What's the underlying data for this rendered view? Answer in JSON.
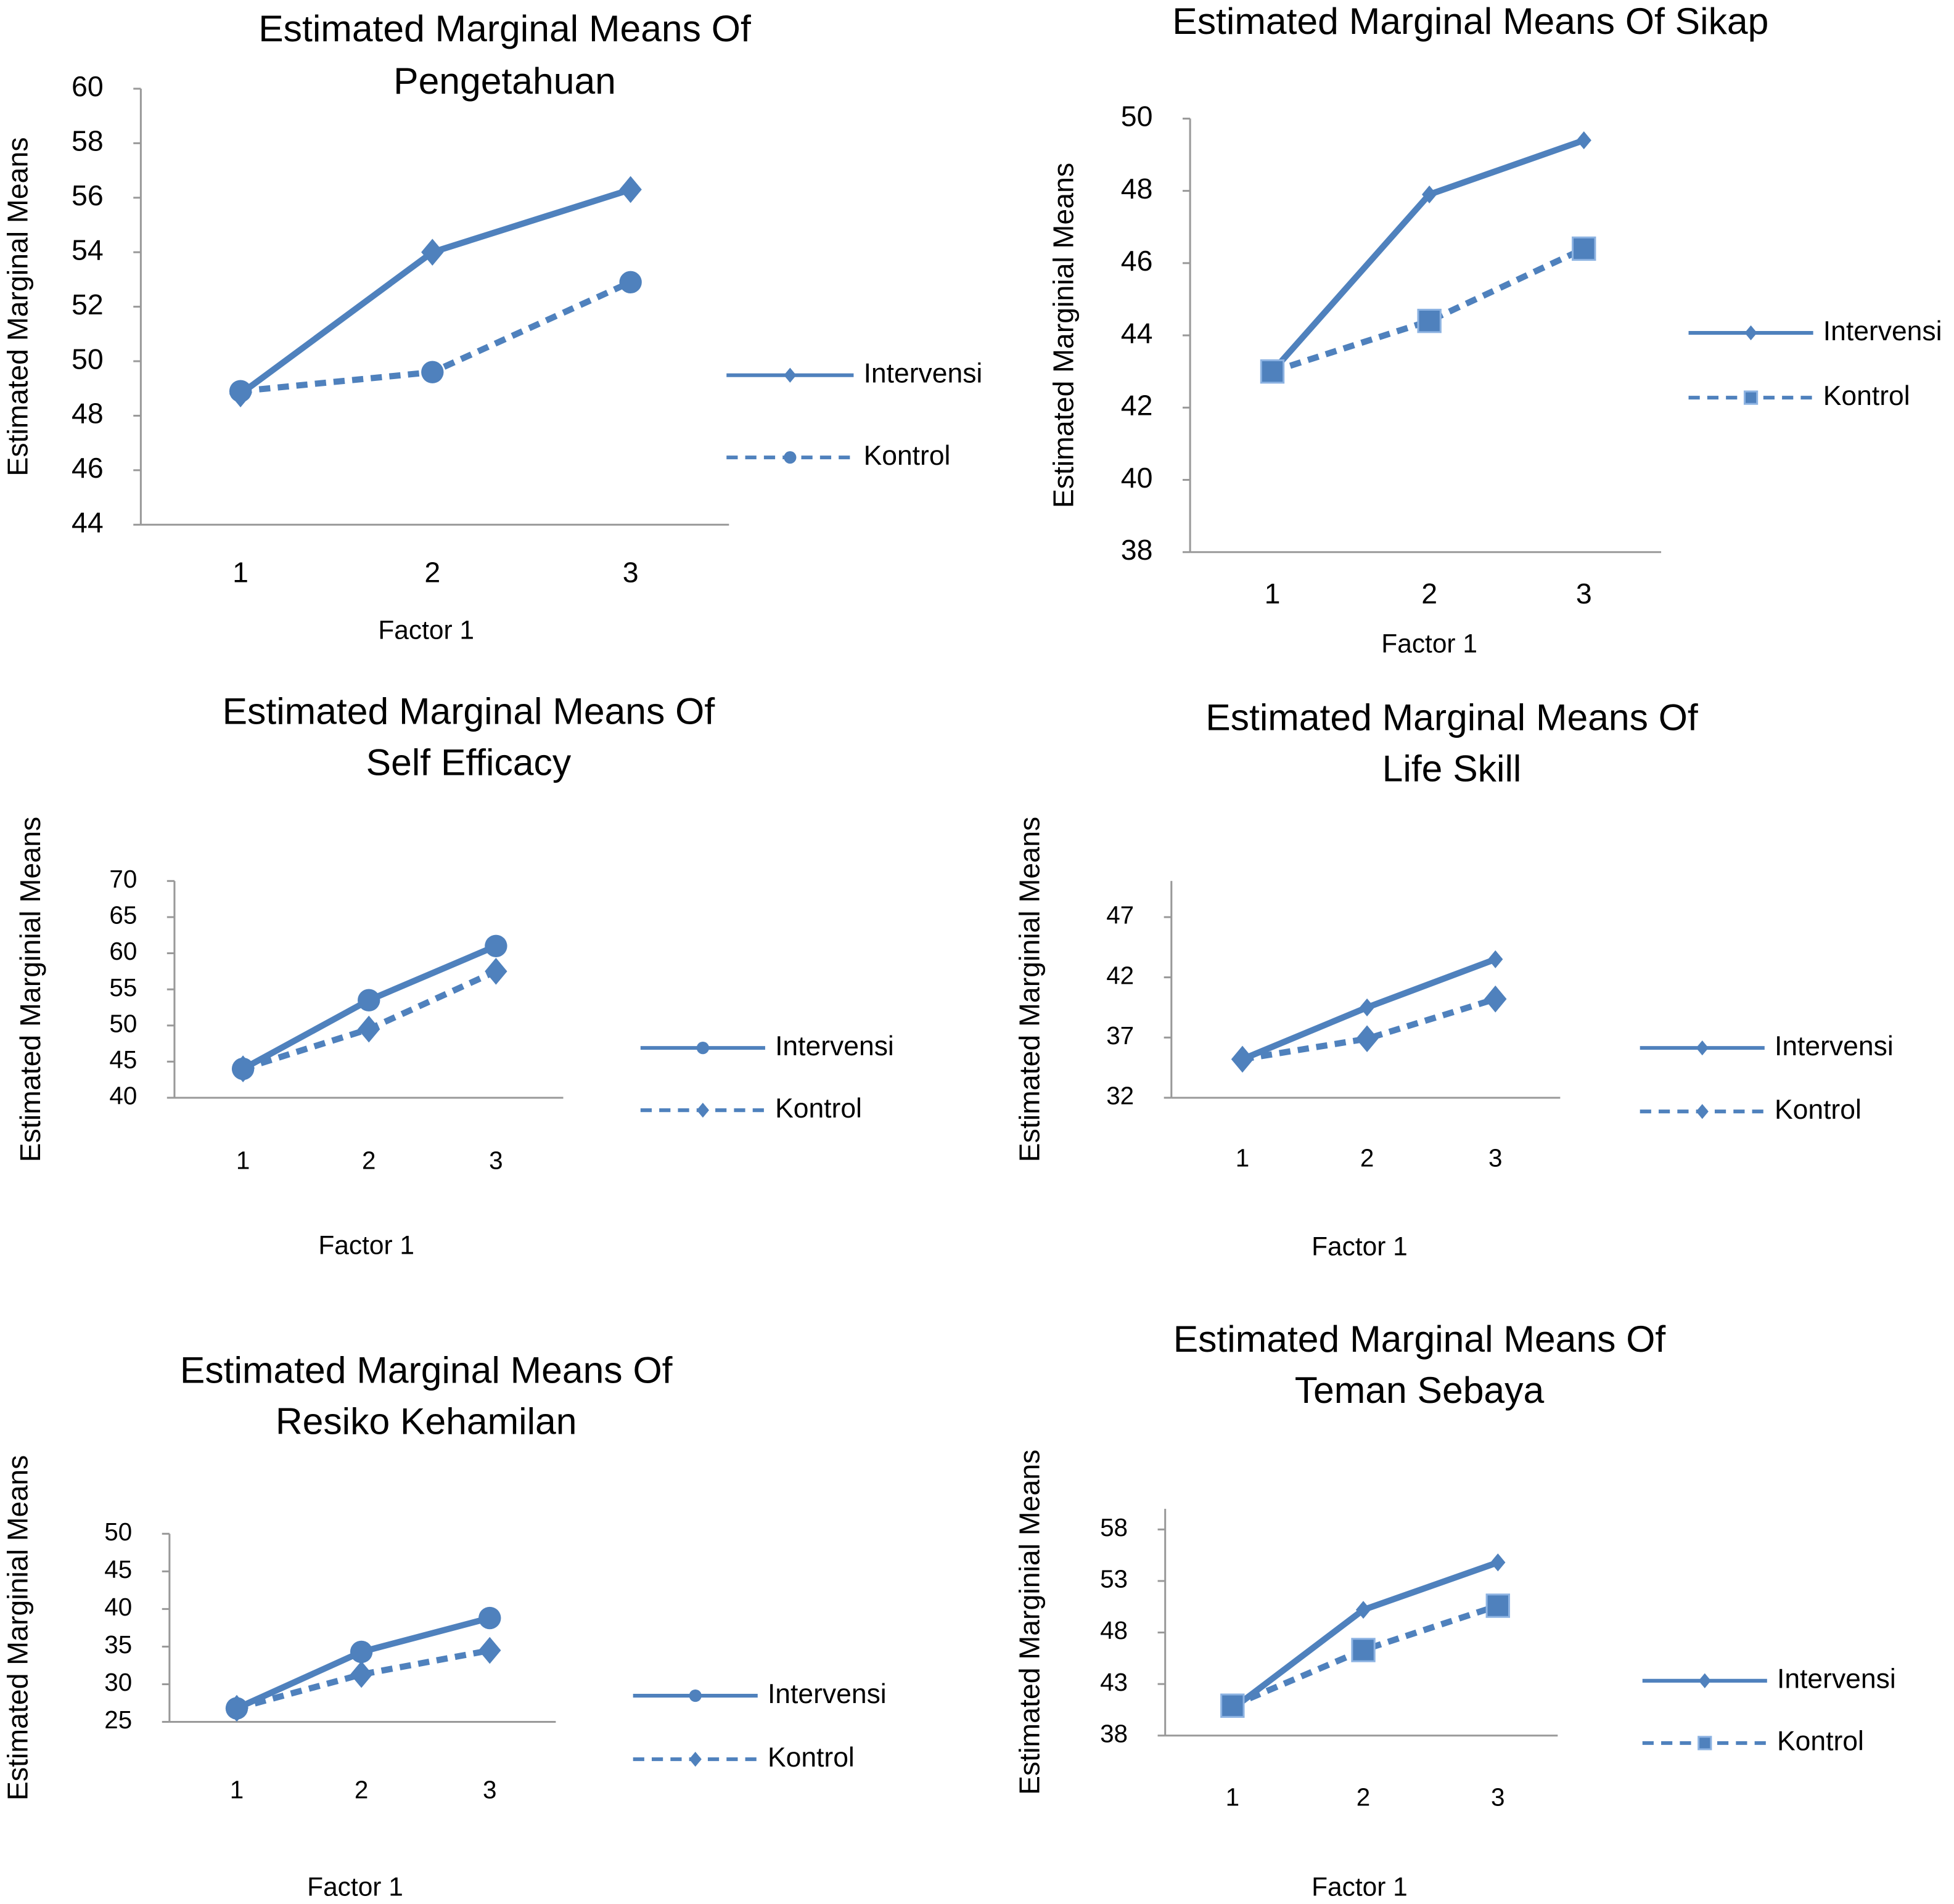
{
  "chart_data": [
    {
      "type": "line",
      "title": [
        "Estimated Marginal Means Of",
        "Pengetahuan"
      ],
      "xlabel": "Factor 1",
      "ylabel": "Estimated Marginal Means",
      "categories": [
        "1",
        "2",
        "3"
      ],
      "ylim": [
        44,
        60
      ],
      "yticks": [
        44,
        46,
        48,
        50,
        52,
        54,
        56,
        58,
        60
      ],
      "series": [
        {
          "name": "Intervensi",
          "color": "#4f81bd",
          "linestyle": "solid",
          "marker": "diamond",
          "values": [
            48.8,
            54.0,
            56.3
          ]
        },
        {
          "name": "Kontrol",
          "color": "#4f81bd",
          "linestyle": "dashed",
          "marker": "circle",
          "values": [
            48.9,
            49.6,
            52.9
          ]
        }
      ]
    },
    {
      "type": "line",
      "title": [
        "Estimated Marginal Means Of Sikap"
      ],
      "xlabel": "Factor 1",
      "ylabel": "Estimated Marginial Means",
      "categories": [
        "1",
        "2",
        "3"
      ],
      "ylim": [
        38,
        50
      ],
      "yticks": [
        38,
        40,
        42,
        44,
        46,
        48,
        50
      ],
      "series": [
        {
          "name": "Intervensi",
          "color": "#4f81bd",
          "linestyle": "solid",
          "marker": "diamond",
          "values": [
            43.0,
            47.9,
            49.4
          ]
        },
        {
          "name": "Kontrol",
          "color": "#4f81bd",
          "linestyle": "dashed",
          "marker": "square",
          "values": [
            43.0,
            44.4,
            46.4
          ]
        }
      ]
    },
    {
      "type": "line",
      "title": [
        "Estimated Marginal Means Of",
        "Self Efficacy"
      ],
      "xlabel": "Factor 1",
      "ylabel": "Estimated Marginial Means",
      "categories": [
        "1",
        "2",
        "3"
      ],
      "ylim": [
        40,
        70
      ],
      "yticks": [
        40,
        45,
        50,
        55,
        60,
        65,
        70
      ],
      "series": [
        {
          "name": "Intervensi",
          "color": "#4f81bd",
          "linestyle": "solid",
          "marker": "circle",
          "values": [
            44,
            53.5,
            61
          ]
        },
        {
          "name": "Kontrol",
          "color": "#4f81bd",
          "linestyle": "dashed",
          "marker": "diamond",
          "values": [
            44,
            49.5,
            57.5
          ]
        }
      ]
    },
    {
      "type": "line",
      "title": [
        "Estimated Marginal Means Of",
        "Life Skill"
      ],
      "xlabel": "Factor 1",
      "ylabel": "Estimated Marginial Means",
      "categories": [
        "1",
        "2",
        "3"
      ],
      "ylim": [
        32,
        50
      ],
      "yticks": [
        32,
        37,
        42,
        47
      ],
      "series": [
        {
          "name": "Intervensi",
          "color": "#4f81bd",
          "linestyle": "solid",
          "marker": "diamond",
          "values": [
            35.2,
            39.5,
            43.5
          ]
        },
        {
          "name": "Kontrol",
          "color": "#4f81bd",
          "linestyle": "dashed",
          "marker": "diamond",
          "values": [
            35.2,
            36.9,
            40.2
          ]
        }
      ]
    },
    {
      "type": "line",
      "title": [
        "Estimated Marginal Means Of",
        "Resiko Kehamilan"
      ],
      "xlabel": "Factor 1",
      "ylabel": "Estimated Marginial Means",
      "categories": [
        "1",
        "2",
        "3"
      ],
      "ylim": [
        25,
        50
      ],
      "yticks": [
        25,
        30,
        35,
        40,
        45,
        50
      ],
      "series": [
        {
          "name": "Intervensi",
          "color": "#4f81bd",
          "linestyle": "solid",
          "marker": "circle",
          "values": [
            26.8,
            34.3,
            38.8
          ]
        },
        {
          "name": "Kontrol",
          "color": "#4f81bd",
          "linestyle": "dashed",
          "marker": "diamond",
          "values": [
            26.8,
            31.3,
            34.5
          ]
        }
      ]
    },
    {
      "type": "line",
      "title": [
        "Estimated Marginal Means Of",
        "Teman Sebaya"
      ],
      "xlabel": "Factor 1",
      "ylabel": "Estimated Marginial Means",
      "categories": [
        "1",
        "2",
        "3"
      ],
      "ylim": [
        38,
        60
      ],
      "yticks": [
        38,
        43,
        48,
        53,
        58
      ],
      "series": [
        {
          "name": "Intervensi",
          "color": "#4f81bd",
          "linestyle": "solid",
          "marker": "diamond",
          "values": [
            40.6,
            50.2,
            54.8
          ]
        },
        {
          "name": "Kontrol",
          "color": "#4f81bd",
          "linestyle": "dashed",
          "marker": "square",
          "values": [
            40.9,
            46.3,
            50.6
          ]
        }
      ]
    }
  ]
}
